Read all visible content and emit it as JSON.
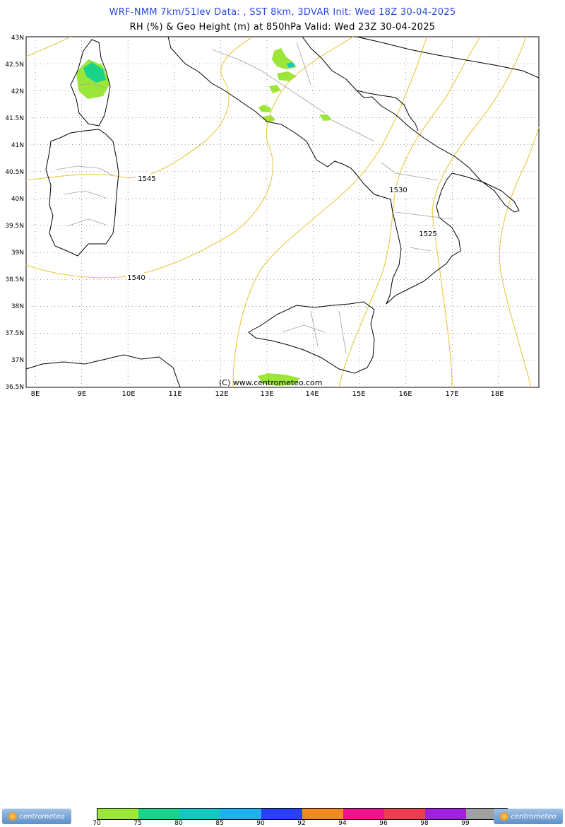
{
  "header": {
    "line1": "WRF-NMM 7km/51lev  Data: , SST 8km, 3DVAR  Init: Wed 18Z 30-04-2025",
    "line2": "RH (%) & Geo Height (m) at 850hPa  Valid: Wed 23Z 30-04-2025"
  },
  "map": {
    "lat_labels": [
      "43N",
      "42.5N",
      "42N",
      "41.5N",
      "41N",
      "40.5N",
      "40N",
      "39.5N",
      "39N",
      "38.5N",
      "38N",
      "37.5N",
      "37N",
      "36.5N"
    ],
    "lon_labels": [
      "8E",
      "9E",
      "10E",
      "11E",
      "12E",
      "13E",
      "14E",
      "15E",
      "16E",
      "17E",
      "18E"
    ],
    "contour_labels": [
      "1545",
      "1540",
      "1530",
      "1525"
    ],
    "copyright": "(C) www.centrometeo.com",
    "colors": {
      "coast": "#000000",
      "borders": "#a0a0a0",
      "contours": "#e8c840",
      "grid": "#808080"
    }
  },
  "legend": {
    "labels": [
      "70",
      "75",
      "80",
      "85",
      "90",
      "92",
      "94",
      "96",
      "98",
      "99"
    ],
    "colors": [
      "#9be639",
      "#19d38a",
      "#13c8c0",
      "#1eb0f0",
      "#2a40ff",
      "#f08a20",
      "#f0148c",
      "#f03c50",
      "#a020e0",
      "#a0a0a0"
    ],
    "logo_text": "centrometeo"
  }
}
